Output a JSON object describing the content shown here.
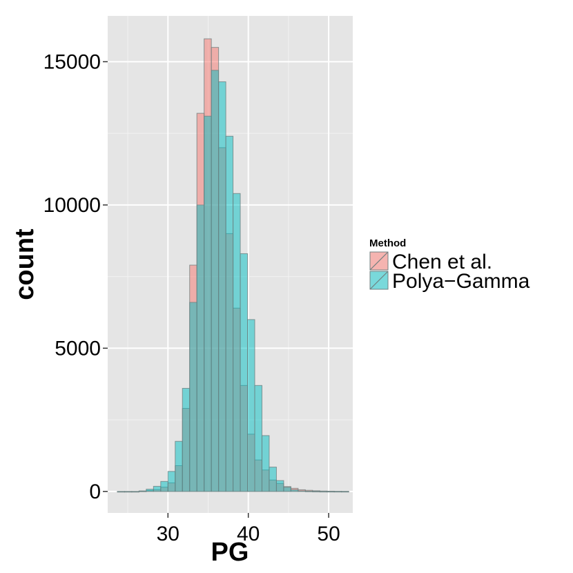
{
  "chart_data": {
    "type": "bar",
    "subtype": "overlapping-histogram",
    "xlabel": "PG",
    "ylabel": "count",
    "xlim": [
      22.5,
      53
    ],
    "ylim": [
      -750,
      16600
    ],
    "x_ticks": [
      30,
      40,
      50
    ],
    "y_ticks": [
      0,
      5000,
      10000,
      15000
    ],
    "grid": true,
    "legend": {
      "title": "Method",
      "placement": "right"
    },
    "bin_width": 0.9,
    "bin_start": 23.7,
    "series": [
      {
        "name": "Chen et al.",
        "color": "#F8766D",
        "values": [
          0,
          0,
          0,
          10,
          30,
          60,
          150,
          300,
          900,
          2900,
          7900,
          13200,
          15800,
          15500,
          12000,
          9000,
          6400,
          3700,
          2000,
          1100,
          750,
          400,
          280,
          170,
          110,
          60,
          40,
          25,
          15,
          10,
          5,
          3
        ]
      },
      {
        "name": "Polya-Gamma",
        "color": "#00BFC4",
        "values": [
          0,
          0,
          0,
          20,
          80,
          180,
          350,
          700,
          1750,
          3600,
          6600,
          10000,
          13100,
          14700,
          14300,
          12400,
          10400,
          8300,
          6000,
          3700,
          1950,
          850,
          380,
          150,
          60,
          20,
          8,
          3,
          0,
          0,
          0,
          0
        ]
      }
    ]
  },
  "colors": {
    "panel": "#E5E5E5",
    "grid_major": "#FFFFFF",
    "grid_minor": "#F2F2F2",
    "bar_outline": "#6F7F7F"
  }
}
